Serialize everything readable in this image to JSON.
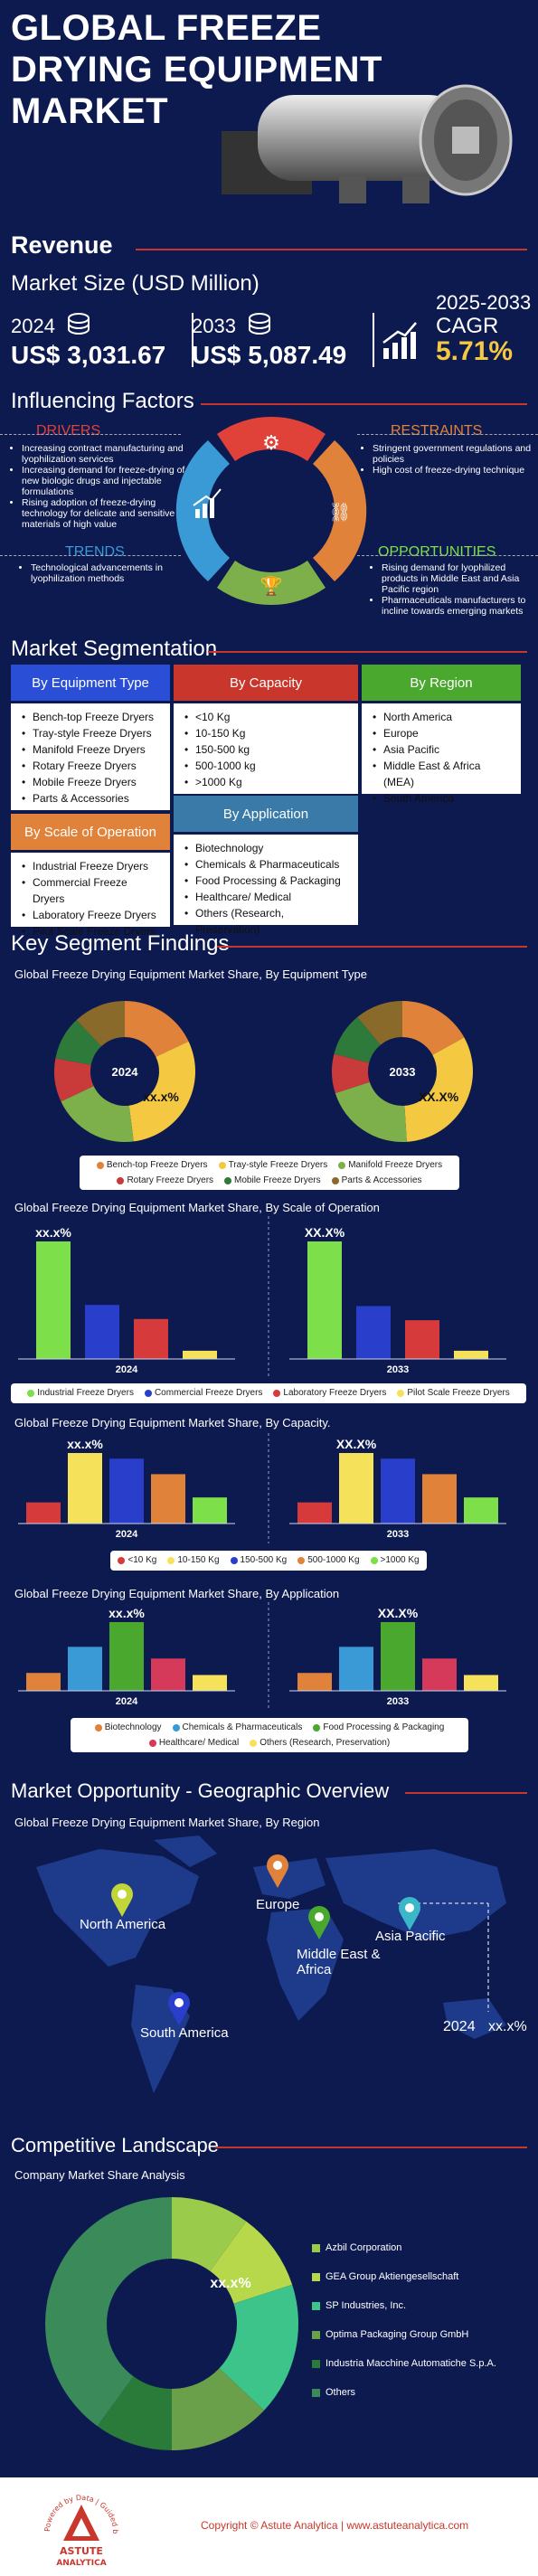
{
  "header": {
    "title_line1": "GLOBAL FREEZE",
    "title_line2": "DRYING EQUIPMENT",
    "title_line3": "MARKET"
  },
  "revenue": {
    "section_title": "Revenue",
    "subtitle": "Market Size (USD Million)",
    "y1": "2024",
    "v1": "US$ 3,031.67",
    "y2": "2033",
    "v2": "US$ 5,087.49",
    "cagr_years": "2025-2033",
    "cagr_label": "CAGR",
    "cagr_value": "5.71%"
  },
  "factors": {
    "section_title": "Influencing Factors",
    "drivers_title": "DRIVERS",
    "drivers": [
      "Increasing contract manufacturing and lyophilization services",
      "Increasing demand for freeze-drying of new biologic drugs and injectable formulations",
      "Rising adoption of freeze-drying technology for delicate and sensitive materials of high value"
    ],
    "restraints_title": "RESTRAINTS",
    "restraints": [
      "Stringent government regulations and policies",
      "High cost of freeze-drying technique"
    ],
    "trends_title": "TRENDS",
    "trends": [
      "Technological advancements in lyophilization methods"
    ],
    "opportunities_title": "OPPORTUNITIES",
    "opportunities": [
      "Rising demand for lyophilized products in Middle East and Asia Pacific region",
      "Pharmaceuticals manufacturers to incline towards emerging markets"
    ]
  },
  "segmentation": {
    "section_title": "Market Segmentation",
    "equipment": {
      "title": "By Equipment Type",
      "items": [
        "Bench-top Freeze Dryers",
        "Tray-style Freeze Dryers",
        "Manifold Freeze Dryers",
        "Rotary Freeze Dryers",
        "Mobile Freeze Dryers",
        "Parts & Accessories"
      ]
    },
    "capacity": {
      "title": "By Capacity",
      "items": [
        "<10 Kg",
        "10-150 Kg",
        "150-500 kg",
        "500-1000 kg",
        ">1000 Kg"
      ]
    },
    "region": {
      "title": "By Region",
      "items": [
        "North America",
        "Europe",
        "Asia Pacific",
        "Middle East & Africa (MEA)",
        "South America"
      ]
    },
    "scale": {
      "title": "By Scale of Operation",
      "items": [
        "Industrial Freeze Dryers",
        "Commercial Freeze Dryers",
        "Laboratory Freeze Dryers",
        "Pilot Scale Freeze Dryers"
      ]
    },
    "application": {
      "title": "By Application",
      "items": [
        "Biotechnology",
        "Chemicals & Pharmaceuticals",
        "Food Processing & Packaging",
        "Healthcare/ Medical",
        "Others (Research, Preservation)"
      ]
    }
  },
  "findings": {
    "section_title": "Key Segment Findings",
    "placeholder_a": "xx.x%",
    "placeholder_b": "XX.X%",
    "year_a": "2024",
    "year_b": "2033"
  },
  "chart_data": [
    {
      "type": "pie",
      "title": "Global Freeze Drying Equipment Market Share, By Equipment Type",
      "categories": [
        "Bench-top Freeze Dryers",
        "Tray-style Freeze Dryers",
        "Manifold Freeze Dryers",
        "Rotary Freeze Dryers",
        "Mobile Freeze Dryers",
        "Parts & Accessories"
      ],
      "colors": [
        "#e0823a",
        "#f5c842",
        "#7db04a",
        "#c93a3a",
        "#2e7a3a",
        "#8a6a2a"
      ],
      "series": [
        {
          "name": "2024",
          "values": [
            18,
            30,
            20,
            10,
            10,
            12
          ]
        },
        {
          "name": "2033",
          "values": [
            17,
            32,
            21,
            9,
            10,
            11
          ]
        }
      ],
      "data_label_2024": "xx.x%",
      "data_label_2033": "XX.X%"
    },
    {
      "type": "bar",
      "title": "Global Freeze Drying Equipment Market Share, By Scale of Operation",
      "categories": [
        "Industrial Freeze Dryers",
        "Commercial Freeze Dryers",
        "Laboratory Freeze Dryers",
        "Pilot Scale Freeze Dryers"
      ],
      "colors": [
        "#7de04a",
        "#2a3ecc",
        "#d63a3a",
        "#f5e25a"
      ],
      "series": [
        {
          "name": "2024",
          "values": [
            100,
            46,
            34,
            7
          ]
        },
        {
          "name": "2033",
          "values": [
            100,
            45,
            33,
            7
          ]
        }
      ],
      "data_label_2024": "xx.x%",
      "data_label_2033": "XX.X%"
    },
    {
      "type": "bar",
      "title": "Global Freeze Drying Equipment Market Share, By Capacity.",
      "categories": [
        "<10 Kg",
        "10-150 Kg",
        "150-500 Kg",
        "500-1000 Kg",
        ">1000 Kg"
      ],
      "colors": [
        "#d63a3a",
        "#f5e25a",
        "#2a3ecc",
        "#e0823a",
        "#7de04a"
      ],
      "series": [
        {
          "name": "2024",
          "values": [
            30,
            100,
            92,
            70,
            37
          ]
        },
        {
          "name": "2033",
          "values": [
            30,
            100,
            92,
            70,
            37
          ]
        }
      ],
      "data_label_2024": "xx.x%",
      "data_label_2033": "XX.X%"
    },
    {
      "type": "bar",
      "title": "Global Freeze Drying Equipment Market Share, By Application",
      "categories": [
        "Biotechnology",
        "Chemicals & Pharmaceuticals",
        "Food Processing & Packaging",
        "Healthcare/ Medical",
        "Others (Research, Preservation)"
      ],
      "colors": [
        "#e0823a",
        "#3a9ad6",
        "#4aa82e",
        "#d63a5a",
        "#f5e25a"
      ],
      "series": [
        {
          "name": "2024",
          "values": [
            26,
            64,
            100,
            47,
            23
          ]
        },
        {
          "name": "2033",
          "values": [
            26,
            64,
            100,
            47,
            23
          ]
        }
      ],
      "data_label_2024": "xx.x%",
      "data_label_2033": "XX.X%"
    },
    {
      "type": "pie",
      "title": "Company Market Share Analysis",
      "categories": [
        "Azbil Corporation",
        "GEA Group Aktiengesellschaft",
        "SP Industries, Inc.",
        "Optima Packaging Group GmbH",
        "Industria Macchine Automatiche S.p.A.",
        "Others"
      ],
      "colors": [
        "#9acb4a",
        "#b6d84a",
        "#3cc48a",
        "#6aa04a",
        "#2a7a3a",
        "#3a8a5a"
      ],
      "values": [
        10,
        10,
        17,
        13,
        10,
        40
      ],
      "data_label": "xx.x%"
    }
  ],
  "geo": {
    "section_title": "Market Opportunity - Geographic Overview",
    "chart_title": "Global Freeze Drying Equipment Market Share, By Region",
    "regions": [
      "North America",
      "Europe",
      "Middle East & Africa",
      "Asia Pacific",
      "South America"
    ],
    "year": "2024",
    "value": "xx.x%"
  },
  "competitive": {
    "section_title": "Competitive Landscape",
    "chart_title": "Company Market Share Analysis"
  },
  "footer": {
    "logo_arc": "Powered by Data | Guided by Intelligence",
    "logo_line1": "ASTUTE",
    "logo_line2": "ANALYTICA",
    "copyright": "Copyright © Astute Analytica",
    "separator": "|",
    "website": "www.astuteanalytica.com"
  },
  "colors": {
    "background": "#0d1a4f",
    "accent_red": "#c9372c",
    "drivers": "#e0423a",
    "restraints": "#e0823a",
    "trends": "#3a9ad6",
    "opportunities": "#7de04a"
  }
}
